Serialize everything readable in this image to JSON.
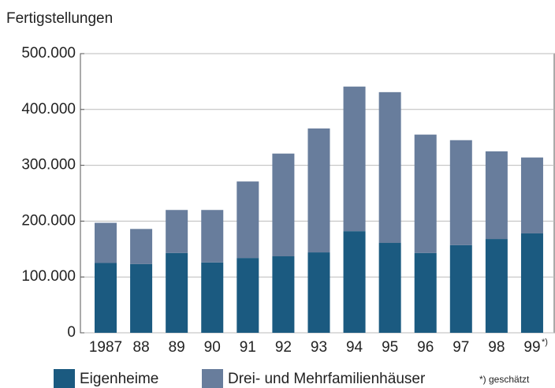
{
  "chart_data": {
    "type": "stacked_bar",
    "title": "Fertigstellungen",
    "categories": [
      "1987",
      "88",
      "89",
      "90",
      "91",
      "92",
      "93",
      "94",
      "95",
      "96",
      "97",
      "98",
      "99"
    ],
    "category_note": "*)",
    "series": [
      {
        "name": "Eigenheime",
        "color": "#1b5a80",
        "values": [
          125000,
          123000,
          143000,
          126000,
          134000,
          137000,
          144000,
          182000,
          161000,
          143000,
          157000,
          168000,
          178000
        ]
      },
      {
        "name": "Drei- und Mehrfamilienhäuser",
        "color": "#687d9c",
        "values": [
          72000,
          63000,
          77000,
          94000,
          137000,
          184000,
          222000,
          259000,
          270000,
          212000,
          188000,
          157000,
          136000
        ]
      }
    ],
    "footnote": "*) geschätzt",
    "ylim": [
      0,
      500000
    ],
    "yticks": [
      0,
      {
        "value": 100000,
        "label": "100.000"
      },
      {
        "value": 200000,
        "label": "200.000"
      },
      {
        "value": 300000,
        "label": "300.000"
      },
      {
        "value": 400000,
        "label": "400.000"
      },
      {
        "value": 500000,
        "label": "500.000"
      }
    ],
    "grid": true
  }
}
